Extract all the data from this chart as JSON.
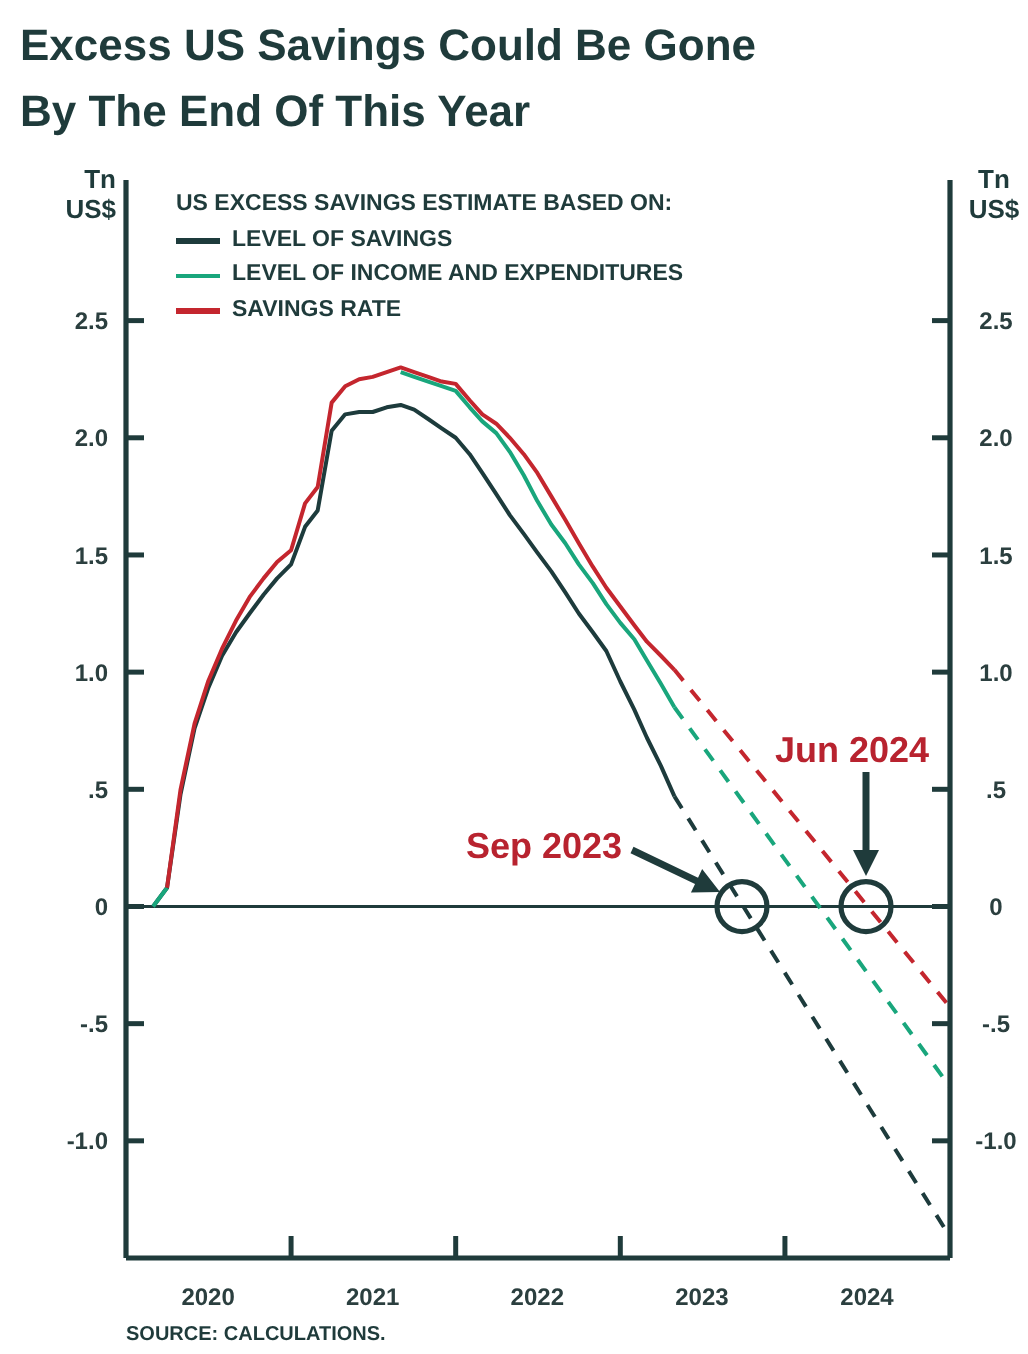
{
  "chart_data": {
    "type": "line",
    "title": "Excess US Savings Could Be Gone By The End Of This Year",
    "ylabel": "Tn US$",
    "y2label": "Tn US$",
    "legend_title": "US EXCESS SAVINGS ESTIMATE BASED ON:",
    "legend": "top left",
    "marker": "none",
    "line_style": "solid",
    "xlim": [
      "2020-01",
      "2025-01"
    ],
    "xticks": [
      {
        "value": "2020-07",
        "label": "2020"
      },
      {
        "value": "2021-01",
        "label": null
      },
      {
        "value": "2021-07",
        "label": "2021"
      },
      {
        "value": "2022-01",
        "label": null
      },
      {
        "value": "2022-07",
        "label": "2022"
      },
      {
        "value": "2023-01",
        "label": null
      },
      {
        "value": "2023-07",
        "label": "2023"
      },
      {
        "value": "2024-01",
        "label": null
      },
      {
        "value": "2024-07",
        "label": "2024"
      }
    ],
    "ylim": [
      -1.5,
      3.1
    ],
    "yticks": [
      {
        "value": -1,
        "label": "-1.0"
      },
      {
        "value": -0.5,
        "label": "-.5"
      },
      0,
      {
        "value": 0.5,
        "label": ".5"
      },
      {
        "value": 1,
        "label": "1.0"
      },
      1.5,
      {
        "value": 2,
        "label": "2.0"
      },
      2.5
    ],
    "y2lim": [
      -1.5,
      3.1
    ],
    "y2ticks": [
      {
        "value": -1,
        "label": "-1.0"
      },
      {
        "value": -0.5,
        "label": "-.5"
      },
      0,
      {
        "value": 0.5,
        "label": ".5"
      },
      {
        "value": 1,
        "label": "1.0"
      },
      1.5,
      {
        "value": 2,
        "label": "2.0"
      },
      2.5
    ],
    "ref_lines": [
      {
        "axis": "y",
        "value": 0,
        "color": "#1f3b3b"
      }
    ],
    "series": [
      {
        "name": "LEVEL OF SAVINGS",
        "color": "#1d3b3c",
        "x": [
          "2020-03",
          "2020-04",
          "2020-05",
          "2020-06",
          "2020-07",
          "2020-08",
          "2020-09",
          "2020-10",
          "2020-11",
          "2020-12",
          "2021-01",
          "2021-02",
          "2021-03",
          "2021-04",
          "2021-05",
          "2021-06",
          "2021-07",
          "2021-08",
          "2021-09",
          "2021-10",
          "2021-11",
          "2021-12",
          "2022-01",
          "2022-02",
          "2022-03",
          "2022-04",
          "2022-05",
          "2022-06",
          "2022-07",
          "2022-08",
          "2022-09",
          "2022-10",
          "2022-11",
          "2022-12",
          "2023-01",
          "2023-02",
          "2023-03",
          "2023-04",
          "2023-05"
        ],
        "values": [
          0,
          0.08,
          0.48,
          0.76,
          0.93,
          1.07,
          1.17,
          1.25,
          1.33,
          1.4,
          1.46,
          1.62,
          1.69,
          2.03,
          2.1,
          2.11,
          2.11,
          2.13,
          2.14,
          2.12,
          2.08,
          2.04,
          2.0,
          1.93,
          1.85,
          1.76,
          1.67,
          1.59,
          1.51,
          1.43,
          1.34,
          1.25,
          1.17,
          1.09,
          0.96,
          0.84,
          0.72,
          0.6,
          0.47
        ]
      },
      {
        "name": "LEVEL OF INCOME AND EXPENDITURES",
        "color": "#19a67c",
        "x": [
          "2020-03",
          "2020-04",
          "2020-05",
          "2020-06",
          "2020-07",
          "2020-08",
          "2020-09",
          "2020-10",
          "2020-11",
          "2020-12",
          "2021-01",
          "2021-02",
          "2021-03",
          "2021-04",
          "2021-05",
          "2021-06",
          "2021-07",
          "2021-08",
          "2021-09",
          "2021-10",
          "2021-11",
          "2021-12",
          "2022-01",
          "2022-02",
          "2022-03",
          "2022-04",
          "2022-05",
          "2022-06",
          "2022-07",
          "2022-08",
          "2022-09",
          "2022-10",
          "2022-11",
          "2022-12",
          "2023-01",
          "2023-02",
          "2023-03",
          "2023-04",
          "2023-05"
        ],
        "values": [
          0,
          0.08,
          null,
          null,
          null,
          null,
          null,
          null,
          null,
          null,
          null,
          null,
          null,
          null,
          null,
          null,
          null,
          null,
          2.28,
          2.26,
          2.24,
          2.22,
          2.2,
          2.13,
          2.07,
          2.02,
          1.94,
          1.84,
          1.73,
          1.63,
          1.55,
          1.46,
          1.38,
          1.29,
          1.21,
          1.14,
          1.05,
          0.95,
          0.85
        ]
      },
      {
        "name": "SAVINGS RATE",
        "color": "#c4262e",
        "x": [
          "2020-04",
          "2020-05",
          "2020-06",
          "2020-07",
          "2020-08",
          "2020-09",
          "2020-10",
          "2020-11",
          "2020-12",
          "2021-01",
          "2021-02",
          "2021-03",
          "2021-04",
          "2021-05",
          "2021-06",
          "2021-07",
          "2021-08",
          "2021-09",
          "2021-10",
          "2021-11",
          "2021-12",
          "2022-01",
          "2022-02",
          "2022-03",
          "2022-04",
          "2022-05",
          "2022-06",
          "2022-07",
          "2022-08",
          "2022-09",
          "2022-10",
          "2022-11",
          "2022-12",
          "2023-01",
          "2023-02",
          "2023-03",
          "2023-04",
          "2023-05"
        ],
        "values": [
          0.08,
          0.5,
          0.78,
          0.96,
          1.1,
          1.22,
          1.32,
          1.4,
          1.47,
          1.52,
          1.72,
          1.79,
          2.15,
          2.22,
          2.25,
          2.26,
          2.28,
          2.3,
          2.28,
          2.26,
          2.24,
          2.23,
          2.16,
          2.1,
          2.06,
          2.0,
          1.93,
          1.85,
          1.75,
          1.65,
          1.55,
          1.45,
          1.36,
          1.28,
          1.2,
          1.13,
          1.07,
          1.01
        ]
      },
      {
        "color": "#1d3b3c",
        "line_style": "dashed",
        "x": [
          "2023-05",
          "2025-01"
        ],
        "values": [
          0.47,
          -1.41
        ]
      },
      {
        "color": "#19a67c",
        "line_style": "dashed",
        "x": [
          "2023-05",
          "2025-01"
        ],
        "values": [
          0.85,
          -0.77
        ]
      },
      {
        "color": "#c4262e",
        "line_style": "dashed",
        "x": [
          "2023-05",
          "2025-01"
        ],
        "values": [
          1.01,
          -0.43
        ]
      }
    ],
    "annotations": [
      "Sep 2023",
      "Jun 2024",
      "SOURCE: CALCULATIONS."
    ]
  }
}
